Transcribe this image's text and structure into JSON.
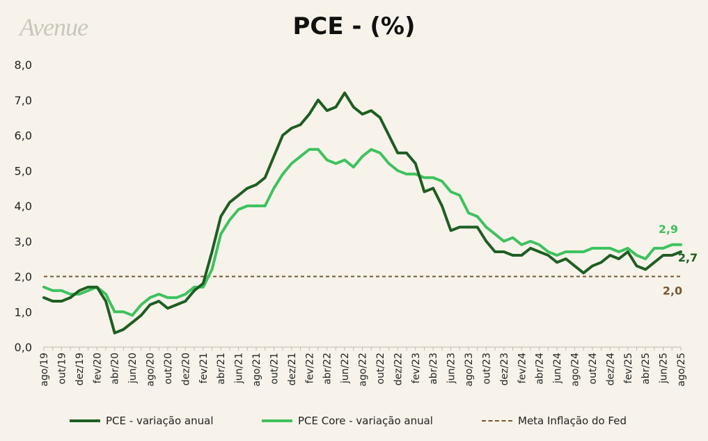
{
  "brand": "Avenue",
  "chart_data": {
    "type": "line",
    "title": "PCE - (%)",
    "ylim": [
      0,
      8
    ],
    "yticks": [
      "0,0",
      "1,0",
      "2,0",
      "3,0",
      "4,0",
      "5,0",
      "6,0",
      "7,0",
      "8,0"
    ],
    "xtick_labels": [
      "ago/19",
      "out/19",
      "dez/19",
      "fev/20",
      "abr/20",
      "jun/20",
      "ago/20",
      "out/20",
      "dez/20",
      "fev/21",
      "abr/21",
      "jun/21",
      "ago/21",
      "out/21",
      "dez/21",
      "fev/22",
      "abr/22",
      "jun/22",
      "ago/22",
      "out/22",
      "dez/22",
      "fev/23",
      "abr/23",
      "jun/23",
      "ago/23",
      "out/23",
      "dez/23",
      "fev/24",
      "abr/24",
      "jun/24",
      "ago/24",
      "out/24",
      "dez/24",
      "fev/25",
      "abr/25",
      "jun/25",
      "ago/25"
    ],
    "x_start": "ago/19",
    "x_end": "ago/25",
    "series": [
      {
        "name": "PCE - variação anual",
        "color": "#1e5e22",
        "end_label": "2,7",
        "values": [
          1.4,
          1.3,
          1.3,
          1.4,
          1.6,
          1.7,
          1.7,
          1.3,
          0.4,
          0.5,
          0.7,
          0.9,
          1.2,
          1.3,
          1.1,
          1.2,
          1.3,
          1.6,
          1.8,
          2.7,
          3.7,
          4.1,
          4.3,
          4.5,
          4.6,
          4.8,
          5.4,
          6.0,
          6.2,
          6.3,
          6.6,
          7.0,
          6.7,
          6.8,
          7.2,
          6.8,
          6.6,
          6.7,
          6.5,
          6.0,
          5.5,
          5.5,
          5.2,
          4.4,
          4.5,
          4.0,
          3.3,
          3.4,
          3.4,
          3.4,
          3.0,
          2.7,
          2.7,
          2.6,
          2.6,
          2.8,
          2.7,
          2.6,
          2.4,
          2.5,
          2.3,
          2.1,
          2.3,
          2.4,
          2.6,
          2.5,
          2.7,
          2.3,
          2.2,
          2.4,
          2.6,
          2.6,
          2.7
        ]
      },
      {
        "name": "PCE Core - variação anual",
        "color": "#3ec25e",
        "end_label": "2,9",
        "values": [
          1.7,
          1.6,
          1.6,
          1.5,
          1.5,
          1.6,
          1.7,
          1.5,
          1.0,
          1.0,
          0.9,
          1.2,
          1.4,
          1.5,
          1.4,
          1.4,
          1.5,
          1.7,
          1.7,
          2.2,
          3.2,
          3.6,
          3.9,
          4.0,
          4.0,
          4.0,
          4.5,
          4.9,
          5.2,
          5.4,
          5.6,
          5.6,
          5.3,
          5.2,
          5.3,
          5.1,
          5.4,
          5.6,
          5.5,
          5.2,
          5.0,
          4.9,
          4.9,
          4.8,
          4.8,
          4.7,
          4.4,
          4.3,
          3.8,
          3.7,
          3.4,
          3.2,
          3.0,
          3.1,
          2.9,
          3.0,
          2.9,
          2.7,
          2.6,
          2.7,
          2.7,
          2.7,
          2.8,
          2.8,
          2.8,
          2.7,
          2.8,
          2.6,
          2.5,
          2.8,
          2.8,
          2.9,
          2.9
        ]
      },
      {
        "name": "Meta Inflação do Fed",
        "color": "#7a5632",
        "end_label": "2,0",
        "style": "dashed",
        "values": [
          2.0
        ]
      }
    ],
    "grid": false,
    "legend_position": "bottom"
  }
}
